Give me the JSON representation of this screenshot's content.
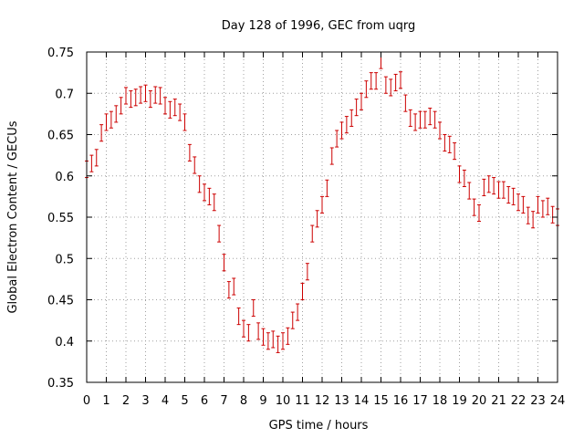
{
  "chart_data": {
    "type": "scatter",
    "title": "Day 128 of 1996, GEC from uqrg",
    "xlabel": "GPS time / hours",
    "ylabel": "Global Electron Content / GECUs",
    "xlim": [
      0,
      24
    ],
    "ylim": [
      0.35,
      0.75
    ],
    "xticks": [
      0,
      1,
      2,
      3,
      4,
      5,
      6,
      7,
      8,
      9,
      10,
      11,
      12,
      13,
      14,
      15,
      16,
      17,
      18,
      19,
      20,
      21,
      22,
      23,
      24
    ],
    "xtick_labels": [
      "0",
      "1",
      "2",
      "3",
      "4",
      "5",
      "6",
      "7",
      "8",
      "9",
      "10",
      "11",
      "12",
      "13",
      "14",
      "15",
      "16",
      "17",
      "18",
      "19",
      "20",
      "21",
      "22",
      "23",
      "24"
    ],
    "yticks": [
      0.35,
      0.4,
      0.45,
      0.5,
      0.55,
      0.6,
      0.65,
      0.7,
      0.75
    ],
    "ytick_labels": [
      "0.35",
      "0.4",
      "0.45",
      "0.5",
      "0.55",
      "0.6",
      "0.65",
      "0.7",
      "0.75"
    ],
    "grid": true,
    "marker_color": "#cc0000",
    "series": [
      {
        "x": [
          0.0,
          0.25,
          0.5,
          0.75,
          1.0,
          1.25,
          1.5,
          1.75,
          2.0,
          2.25,
          2.5,
          2.75,
          3.0,
          3.25,
          3.5,
          3.75,
          4.0,
          4.25,
          4.5,
          4.75,
          5.0,
          5.25,
          5.5,
          5.75,
          6.0,
          6.25,
          6.5,
          6.75,
          7.0,
          7.25,
          7.5,
          7.75,
          8.0,
          8.25,
          8.5,
          8.75,
          9.0,
          9.25,
          9.5,
          9.75,
          10.0,
          10.25,
          10.5,
          10.75,
          11.0,
          11.25,
          11.5,
          11.75,
          12.0,
          12.25,
          12.5,
          12.75,
          13.0,
          13.25,
          13.5,
          13.75,
          14.0,
          14.25,
          14.5,
          14.75,
          15.0,
          15.25,
          15.5,
          15.75,
          16.0,
          16.25,
          16.5,
          16.75,
          17.0,
          17.25,
          17.5,
          17.75,
          18.0,
          18.25,
          18.5,
          18.75,
          19.0,
          19.25,
          19.5,
          19.75,
          20.0,
          20.25,
          20.5,
          20.75,
          21.0,
          21.25,
          21.5,
          21.75,
          22.0,
          22.25,
          22.5,
          22.75,
          23.0,
          23.25,
          23.5,
          23.75,
          24.0
        ],
        "y": [
          0.608,
          0.615,
          0.622,
          0.652,
          0.665,
          0.668,
          0.675,
          0.685,
          0.697,
          0.693,
          0.695,
          0.698,
          0.7,
          0.693,
          0.698,
          0.697,
          0.685,
          0.68,
          0.683,
          0.677,
          0.665,
          0.628,
          0.613,
          0.59,
          0.58,
          0.575,
          0.568,
          0.53,
          0.495,
          0.462,
          0.466,
          0.43,
          0.415,
          0.41,
          0.44,
          0.412,
          0.405,
          0.4,
          0.402,
          0.396,
          0.4,
          0.406,
          0.425,
          0.435,
          0.46,
          0.484,
          0.53,
          0.548,
          0.565,
          0.585,
          0.624,
          0.645,
          0.655,
          0.662,
          0.67,
          0.683,
          0.69,
          0.705,
          0.715,
          0.715,
          0.74,
          0.71,
          0.707,
          0.713,
          0.716,
          0.688,
          0.67,
          0.665,
          0.668,
          0.668,
          0.672,
          0.668,
          0.655,
          0.64,
          0.638,
          0.63,
          0.602,
          0.597,
          0.582,
          0.562,
          0.555,
          0.586,
          0.59,
          0.588,
          0.583,
          0.583,
          0.577,
          0.575,
          0.568,
          0.565,
          0.552,
          0.547,
          0.565,
          0.56,
          0.563,
          0.553,
          0.55
        ],
        "err": [
          0.01,
          0.01,
          0.01,
          0.01,
          0.01,
          0.01,
          0.01,
          0.01,
          0.01,
          0.01,
          0.01,
          0.01,
          0.01,
          0.01,
          0.01,
          0.01,
          0.01,
          0.01,
          0.01,
          0.01,
          0.01,
          0.01,
          0.01,
          0.01,
          0.01,
          0.01,
          0.01,
          0.01,
          0.01,
          0.01,
          0.01,
          0.01,
          0.01,
          0.01,
          0.01,
          0.01,
          0.01,
          0.01,
          0.01,
          0.01,
          0.01,
          0.01,
          0.01,
          0.01,
          0.01,
          0.01,
          0.01,
          0.01,
          0.01,
          0.01,
          0.01,
          0.01,
          0.01,
          0.01,
          0.01,
          0.01,
          0.01,
          0.01,
          0.01,
          0.01,
          0.01,
          0.01,
          0.01,
          0.01,
          0.01,
          0.01,
          0.01,
          0.01,
          0.01,
          0.01,
          0.01,
          0.01,
          0.01,
          0.01,
          0.01,
          0.01,
          0.01,
          0.01,
          0.01,
          0.01,
          0.01,
          0.01,
          0.01,
          0.01,
          0.01,
          0.01,
          0.01,
          0.01,
          0.01,
          0.01,
          0.01,
          0.01,
          0.01,
          0.01,
          0.01,
          0.01,
          0.01
        ]
      }
    ]
  }
}
